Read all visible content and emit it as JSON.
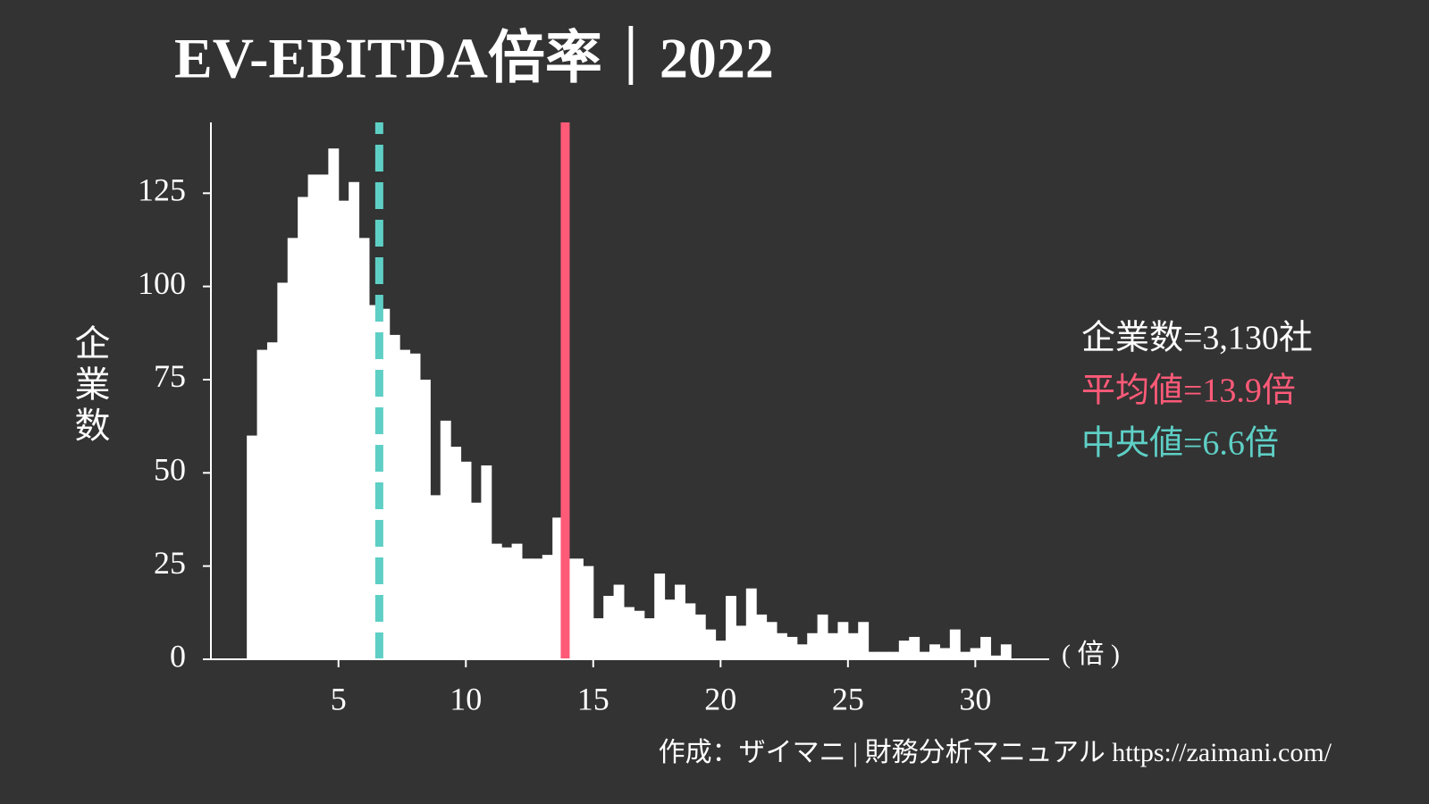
{
  "chart_data": {
    "type": "histogram",
    "title": "EV-EBITDA倍率｜2022",
    "ylabel": "企業数",
    "xlabel": "( 倍 )",
    "source": "作成：ザイマニ | 財務分析マニュアル https://zaimani.com/",
    "color": "#ffffff",
    "bins": [
      1.4,
      1.8,
      2.2,
      2.6,
      3,
      3.4,
      3.8,
      4.2,
      4.6,
      5,
      5.4,
      5.8,
      6.2,
      6.6,
      7,
      7.4,
      7.8,
      8.2,
      8.6,
      9,
      9.4,
      9.8,
      10.2,
      10.6,
      11,
      11.4,
      11.8,
      12.2,
      12.6,
      13,
      13.4,
      13.8,
      14.2,
      14.6,
      15,
      15.4,
      15.8,
      16.2,
      16.6,
      17,
      17.4,
      17.8,
      18.2,
      18.6,
      19,
      19.4,
      19.8,
      20.2,
      20.6,
      21,
      21.4,
      21.8,
      22.2,
      22.6,
      23,
      23.4,
      23.8,
      24.2,
      24.6,
      25,
      25.4,
      25.8,
      26.2,
      26.6,
      27,
      27.4,
      27.8,
      28.2,
      28.6,
      29,
      29.4,
      29.8,
      30.2,
      30.6,
      31,
      31.4
    ],
    "values": [
      60,
      83,
      85,
      101,
      113,
      124,
      130,
      130,
      137,
      123,
      128,
      113,
      95,
      94,
      87,
      83,
      82,
      75,
      44,
      64,
      57,
      53,
      42,
      52,
      31,
      30,
      31,
      27,
      27,
      28,
      38,
      27,
      27,
      25,
      11,
      17,
      20,
      14,
      13,
      11,
      23,
      16,
      20,
      15,
      12,
      8,
      5,
      17,
      9,
      19,
      12,
      10,
      7,
      6,
      4,
      7,
      12,
      7,
      10,
      7,
      10,
      2,
      2,
      2,
      5,
      6,
      2,
      4,
      3,
      8,
      2,
      3,
      6,
      1,
      4
    ],
    "xlim": [
      -0.5,
      32.9
    ],
    "ylim": [
      0,
      144
    ],
    "xticks": [
      5,
      10,
      15,
      20,
      25,
      30
    ],
    "yticks": [
      0,
      25,
      50,
      75,
      100,
      125
    ],
    "mean_line": {
      "value": 13.9,
      "color": "#ff5a78"
    },
    "median_line": {
      "value": 6.6,
      "color": "#5ecfc5"
    },
    "annotations": [
      {
        "text": "企業数=3,130社",
        "color": "#ffffff"
      },
      {
        "text": "平均値=13.9倍",
        "color": "#ff5a78"
      },
      {
        "text": "中央値=6.6倍",
        "color": "#5ecfc5"
      }
    ]
  }
}
